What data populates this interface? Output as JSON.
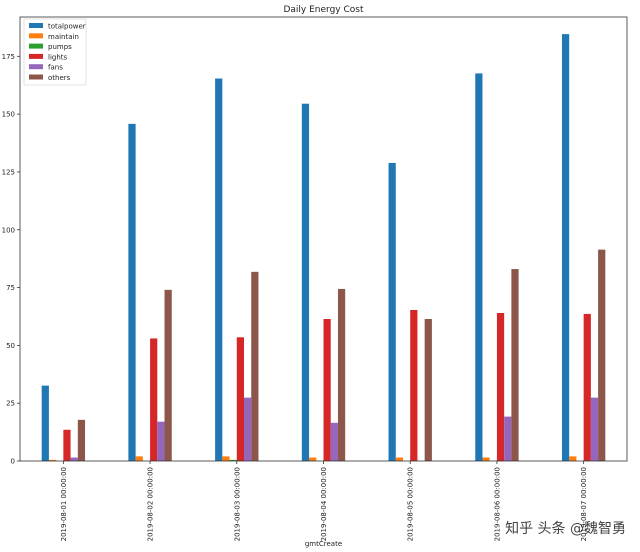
{
  "chart_data": {
    "type": "bar",
    "title": "Daily Energy Cost",
    "xlabel": "gmtCreate",
    "ylabel": "",
    "ylim": [
      0,
      192
    ],
    "yticks": [
      0,
      25,
      50,
      75,
      100,
      125,
      150,
      175
    ],
    "legend_position": "top-left",
    "categories": [
      "2019-08-01 00:00:00",
      "2019-08-02 00:00:00",
      "2019-08-03 00:00:00",
      "2019-08-04 00:00:00",
      "2019-08-05 00:00:00",
      "2019-08-06 00:00:00",
      "2019-08-07 00:00:00"
    ],
    "series": [
      {
        "name": "totalpower",
        "color": "#1f77b4",
        "values": [
          32.6,
          145.8,
          165.4,
          154.5,
          128.9,
          167.6,
          184.6
        ]
      },
      {
        "name": "maintain",
        "color": "#ff7f0e",
        "values": [
          0.5,
          2,
          2,
          1.5,
          1.5,
          1.5,
          2
        ]
      },
      {
        "name": "pumps",
        "color": "#2ca02c",
        "values": [
          0,
          0,
          0.5,
          0,
          0,
          0,
          0
        ]
      },
      {
        "name": "lights",
        "color": "#d62728",
        "values": [
          13.5,
          53,
          53.5,
          61.4,
          65.3,
          64,
          63.6
        ]
      },
      {
        "name": "fans",
        "color": "#9467bd",
        "values": [
          1.5,
          17,
          27.4,
          16.5,
          0,
          19.2,
          27.4
        ]
      },
      {
        "name": "others",
        "color": "#8c564b",
        "values": [
          17.8,
          74,
          81.8,
          74.4,
          61.4,
          83,
          91.4
        ]
      }
    ]
  },
  "watermark": "知乎 头条 @魏智勇"
}
